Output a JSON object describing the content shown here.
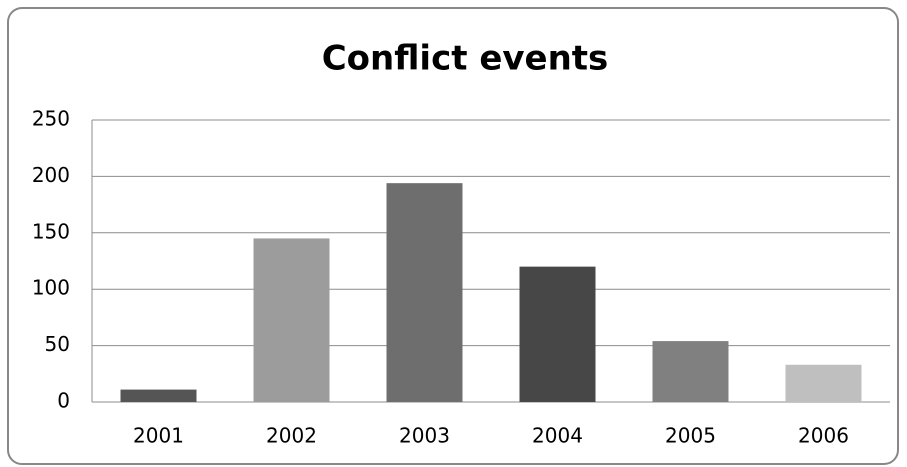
{
  "chart_data": {
    "type": "bar",
    "title": "Conflict events",
    "categories": [
      "2001",
      "2002",
      "2003",
      "2004",
      "2005",
      "2006"
    ],
    "values": [
      11,
      145,
      194,
      120,
      54,
      33
    ],
    "colors": [
      "#555555",
      "#9c9c9c",
      "#6e6e6e",
      "#474747",
      "#808080",
      "#bfbfbf"
    ],
    "ylim": [
      0,
      250
    ],
    "yticks": [
      0,
      50,
      100,
      150,
      200,
      250
    ],
    "grid": true
  }
}
